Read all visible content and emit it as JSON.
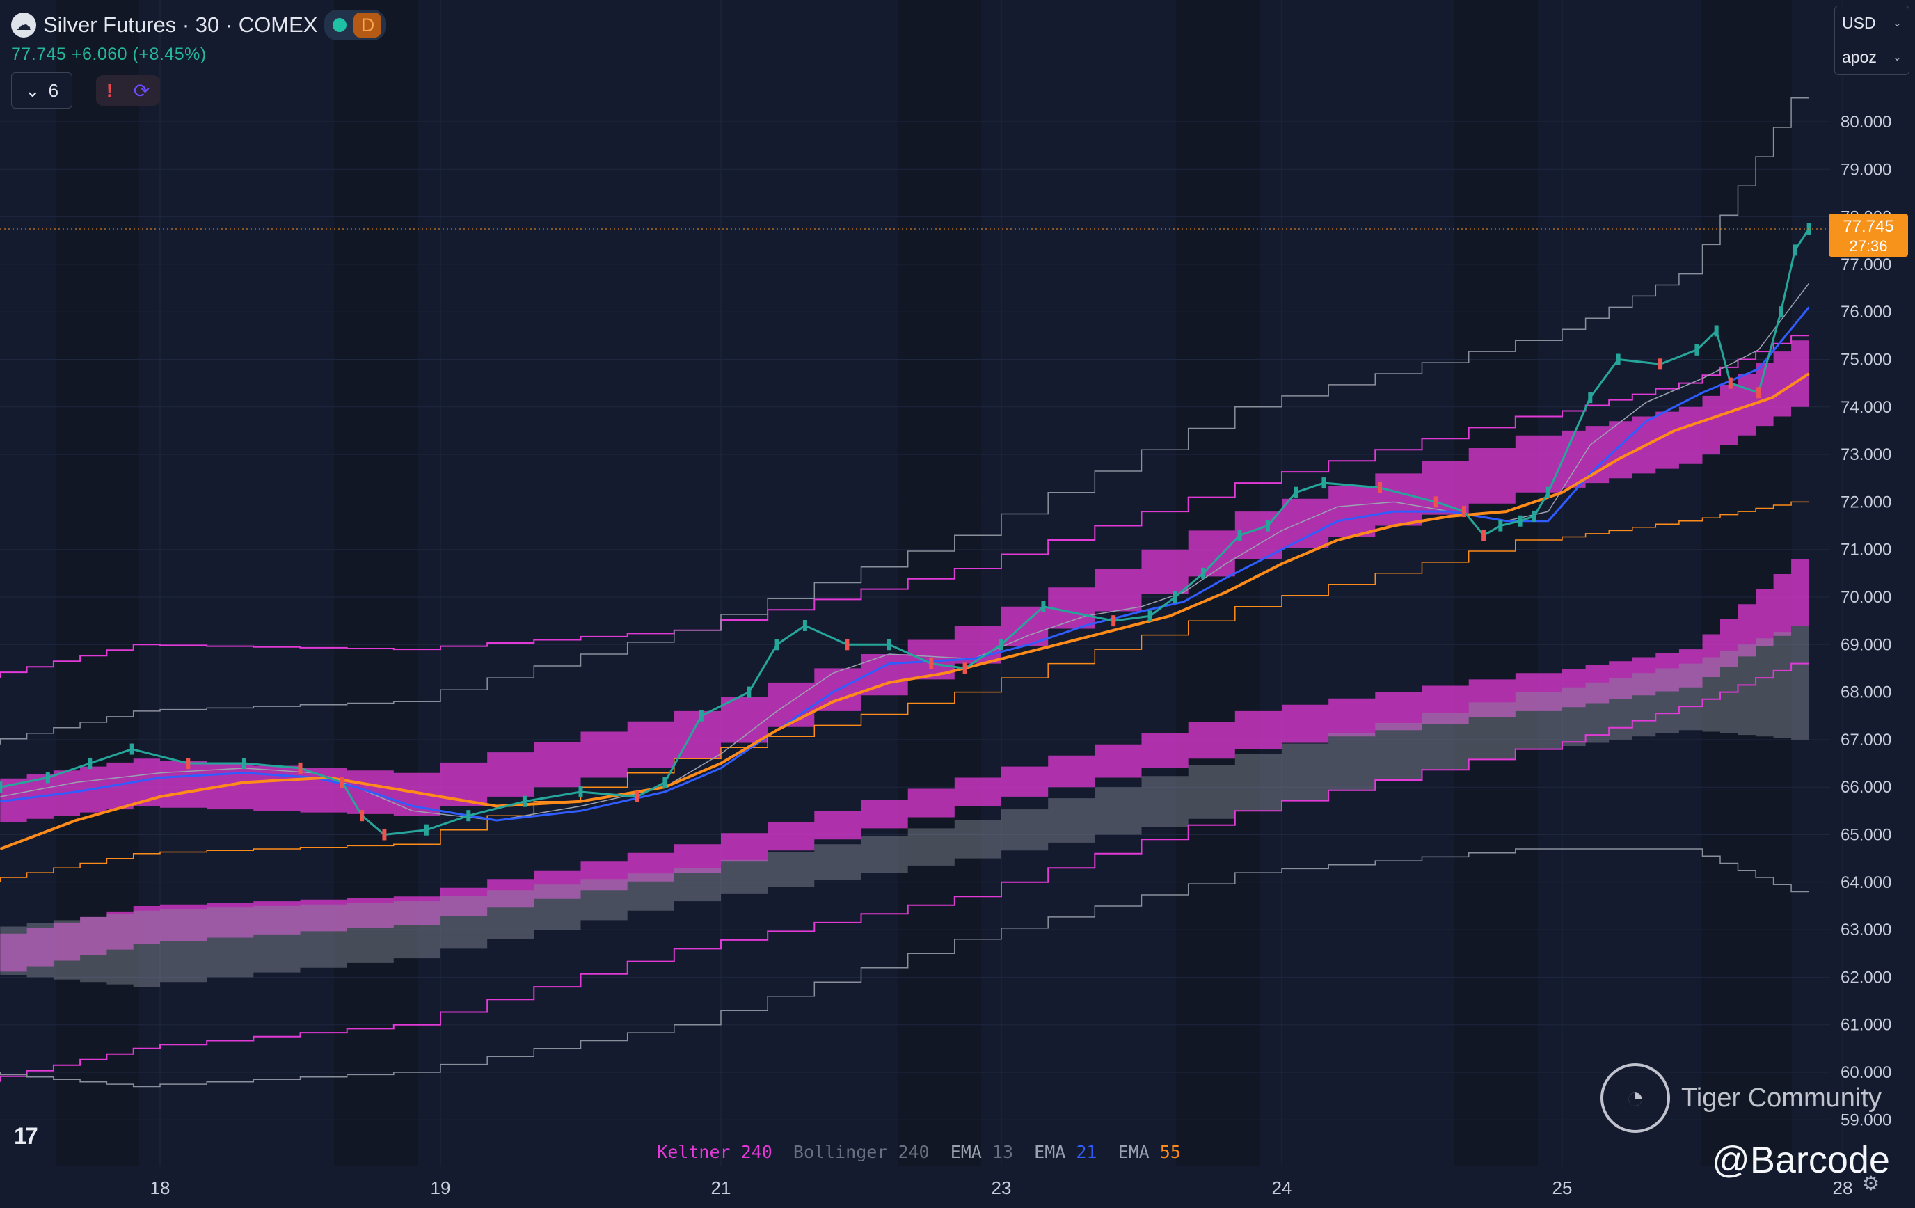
{
  "header": {
    "symbol_title": "Silver Futures · 30 · COMEX",
    "timeframe_badge": "D",
    "quote_line": "77.745 +6.060 (+8.45%)",
    "indicator_count": "6",
    "alert_icon": "!",
    "logo_icon": "silver-coin-icon"
  },
  "currency_menu": {
    "currency": "USD",
    "unit": "apoz"
  },
  "legend": [
    {
      "name": "Keltner",
      "param": "240",
      "color": "#e23ad6"
    },
    {
      "name": "Bollinger",
      "param": "240",
      "color": "#7c8290"
    },
    {
      "name": "EMA",
      "param": "13",
      "color": "#9aa1b0"
    },
    {
      "name": "EMA",
      "param": "21",
      "color": "#2f5dff"
    },
    {
      "name": "EMA",
      "param": "55",
      "color": "#ff8c1a"
    }
  ],
  "price_label": {
    "price": "77.745",
    "countdown": "27:36",
    "color": "#f7931a"
  },
  "watermark": {
    "brand": "Tiger Community",
    "handle": "@Barcode"
  },
  "colors": {
    "background": "#141b2e",
    "up": "#26a69a",
    "down": "#ef5350",
    "keltner": "#e23ad6",
    "bollinger": "#8a8f9c",
    "ema13": "#9aa1b0",
    "ema21": "#2f5dff",
    "ema55": "#ff8c1a"
  },
  "chart_data": {
    "type": "line",
    "title": "Silver Futures · 30 · COMEX",
    "ylim": [
      58.0,
      81.0
    ],
    "y_ticks": [
      "59.000",
      "60.000",
      "61.000",
      "62.000",
      "63.000",
      "64.000",
      "65.000",
      "66.000",
      "67.000",
      "68.000",
      "69.000",
      "70.000",
      "71.000",
      "72.000",
      "73.000",
      "74.000",
      "75.000",
      "76.000",
      "77.000",
      "78.000",
      "79.000",
      "80.000"
    ],
    "x_ticks": [
      {
        "label": "18",
        "t": 0.0
      },
      {
        "label": "19",
        "t": 1.0
      },
      {
        "label": "21",
        "t": 2.0
      },
      {
        "label": "23",
        "t": 3.0
      },
      {
        "label": "24",
        "t": 4.0
      },
      {
        "label": "25",
        "t": 5.0
      },
      {
        "label": "28",
        "t": 6.0
      }
    ],
    "last_price": 77.745,
    "series": [
      {
        "name": "Price",
        "x": [
          -0.57,
          -0.4,
          -0.25,
          -0.1,
          0.1,
          0.3,
          0.5,
          0.65,
          0.72,
          0.8,
          0.95,
          1.1,
          1.3,
          1.5,
          1.7,
          1.8,
          1.93,
          2.1,
          2.2,
          2.3,
          2.45,
          2.6,
          2.75,
          2.87,
          3.0,
          3.15,
          3.4,
          3.53,
          3.62,
          3.72,
          3.85,
          3.95,
          4.05,
          4.15,
          4.35,
          4.55,
          4.65,
          4.72,
          4.78,
          4.85,
          4.9,
          4.95,
          5.1,
          5.2,
          5.35,
          5.48,
          5.55,
          5.6,
          5.7,
          5.78,
          5.83,
          5.88
        ],
        "values": [
          66.0,
          66.2,
          66.5,
          66.8,
          66.5,
          66.5,
          66.4,
          66.1,
          65.4,
          65.0,
          65.1,
          65.4,
          65.7,
          65.9,
          65.8,
          66.1,
          67.5,
          68.0,
          69.0,
          69.4,
          69.0,
          69.0,
          68.6,
          68.5,
          69.0,
          69.8,
          69.5,
          69.6,
          70.0,
          70.5,
          71.3,
          71.5,
          72.2,
          72.4,
          72.3,
          72.0,
          71.8,
          71.3,
          71.5,
          71.6,
          71.7,
          72.2,
          74.2,
          75.0,
          74.9,
          75.2,
          75.6,
          74.5,
          74.3,
          76.0,
          77.3,
          77.745
        ]
      },
      {
        "name": "EMA 13",
        "x": [
          -0.57,
          -0.3,
          0.0,
          0.3,
          0.55,
          0.7,
          0.9,
          1.2,
          1.5,
          1.8,
          2.0,
          2.2,
          2.4,
          2.6,
          2.9,
          3.1,
          3.3,
          3.5,
          3.65,
          3.8,
          4.0,
          4.2,
          4.4,
          4.6,
          4.8,
          4.95,
          5.1,
          5.3,
          5.5,
          5.7,
          5.88
        ],
        "values": [
          65.8,
          66.1,
          66.3,
          66.4,
          66.3,
          66.0,
          65.5,
          65.3,
          65.6,
          66.0,
          66.7,
          67.6,
          68.4,
          68.8,
          68.7,
          69.2,
          69.6,
          69.8,
          70.1,
          70.7,
          71.4,
          71.9,
          72.0,
          71.8,
          71.6,
          71.8,
          73.2,
          74.1,
          74.6,
          75.2,
          76.6
        ]
      },
      {
        "name": "EMA 21",
        "x": [
          -0.57,
          -0.3,
          0.0,
          0.3,
          0.55,
          0.7,
          0.9,
          1.2,
          1.5,
          1.8,
          2.0,
          2.2,
          2.4,
          2.6,
          2.9,
          3.1,
          3.3,
          3.5,
          3.65,
          3.8,
          4.0,
          4.2,
          4.4,
          4.6,
          4.8,
          4.95,
          5.1,
          5.3,
          5.5,
          5.7,
          5.88
        ],
        "values": [
          65.7,
          65.9,
          66.2,
          66.3,
          66.2,
          66.0,
          65.6,
          65.3,
          65.5,
          65.9,
          66.4,
          67.2,
          68.0,
          68.6,
          68.7,
          69.0,
          69.4,
          69.7,
          69.9,
          70.4,
          71.0,
          71.6,
          71.8,
          71.8,
          71.6,
          71.6,
          72.6,
          73.7,
          74.3,
          74.8,
          76.1
        ]
      },
      {
        "name": "EMA 55",
        "x": [
          -0.57,
          -0.3,
          0.0,
          0.3,
          0.6,
          0.9,
          1.2,
          1.5,
          1.8,
          2.0,
          2.2,
          2.4,
          2.6,
          2.8,
          3.0,
          3.2,
          3.4,
          3.6,
          3.8,
          4.0,
          4.2,
          4.4,
          4.6,
          4.8,
          5.0,
          5.2,
          5.4,
          5.6,
          5.75,
          5.88
        ],
        "values": [
          64.7,
          65.3,
          65.8,
          66.1,
          66.2,
          65.9,
          65.6,
          65.7,
          66.0,
          66.5,
          67.2,
          67.8,
          68.2,
          68.4,
          68.7,
          69.0,
          69.3,
          69.6,
          70.1,
          70.7,
          71.2,
          71.5,
          71.7,
          71.8,
          72.2,
          72.9,
          73.5,
          73.9,
          74.2,
          74.7
        ]
      }
    ],
    "bands": [
      {
        "name": "Keltner inner",
        "x": [
          -0.57,
          0.0,
          1.0,
          2.0,
          3.0,
          4.0,
          5.0,
          5.5,
          5.88
        ],
        "upper": [
          66.1,
          66.6,
          66.3,
          67.6,
          69.4,
          71.8,
          73.4,
          74.0,
          75.4
        ],
        "lower": [
          65.2,
          65.6,
          65.4,
          66.6,
          68.6,
          70.8,
          72.2,
          72.8,
          74.0
        ]
      },
      {
        "name": "Keltner middle",
        "x": [
          -0.57,
          0.0,
          1.0,
          2.0,
          3.0,
          4.0,
          5.0,
          5.5,
          5.88
        ],
        "upper": [
          62.8,
          63.5,
          63.7,
          64.8,
          66.2,
          67.6,
          68.4,
          68.9,
          70.8
        ],
        "lower": [
          62.0,
          62.7,
          63.1,
          64.2,
          65.6,
          66.8,
          67.6,
          68.1,
          69.4
        ]
      },
      {
        "name": "Bollinger middle",
        "x": [
          -0.57,
          0.0,
          1.0,
          2.0,
          3.0,
          4.0,
          5.0,
          5.5,
          5.88
        ],
        "upper": [
          63.0,
          63.4,
          63.6,
          64.3,
          65.3,
          66.7,
          68.0,
          68.6,
          69.4
        ],
        "lower": [
          62.1,
          61.8,
          62.4,
          63.6,
          64.5,
          65.5,
          66.8,
          67.2,
          67.0
        ]
      }
    ],
    "keltner_lines": {
      "x": [
        -0.57,
        0.0,
        1.0,
        2.0,
        3.0,
        4.0,
        5.0,
        5.5,
        5.88
      ],
      "upper": [
        68.3,
        69.0,
        68.9,
        69.3,
        70.6,
        72.4,
        73.8,
        74.5,
        75.5
      ],
      "lower": [
        59.8,
        60.5,
        61.0,
        62.6,
        63.7,
        65.5,
        66.8,
        67.7,
        68.6
      ]
    },
    "bollinger_lines": {
      "x": [
        -0.57,
        0.0,
        1.0,
        2.0,
        3.0,
        4.0,
        5.0,
        5.5,
        5.88
      ],
      "upper": [
        66.9,
        67.6,
        67.8,
        69.3,
        71.3,
        74.0,
        75.4,
        76.8,
        80.5
      ],
      "lower": [
        60.0,
        59.7,
        60.0,
        61.0,
        62.8,
        64.2,
        64.7,
        64.7,
        63.8
      ]
    },
    "ema_offsets_lower": {
      "x": [
        -0.57,
        0.0,
        1.0,
        2.0,
        3.0,
        4.0,
        5.0,
        5.5,
        5.88
      ],
      "values": [
        64.0,
        64.6,
        64.8,
        66.6,
        68.0,
        69.8,
        71.2,
        71.6,
        72.0
      ]
    }
  }
}
